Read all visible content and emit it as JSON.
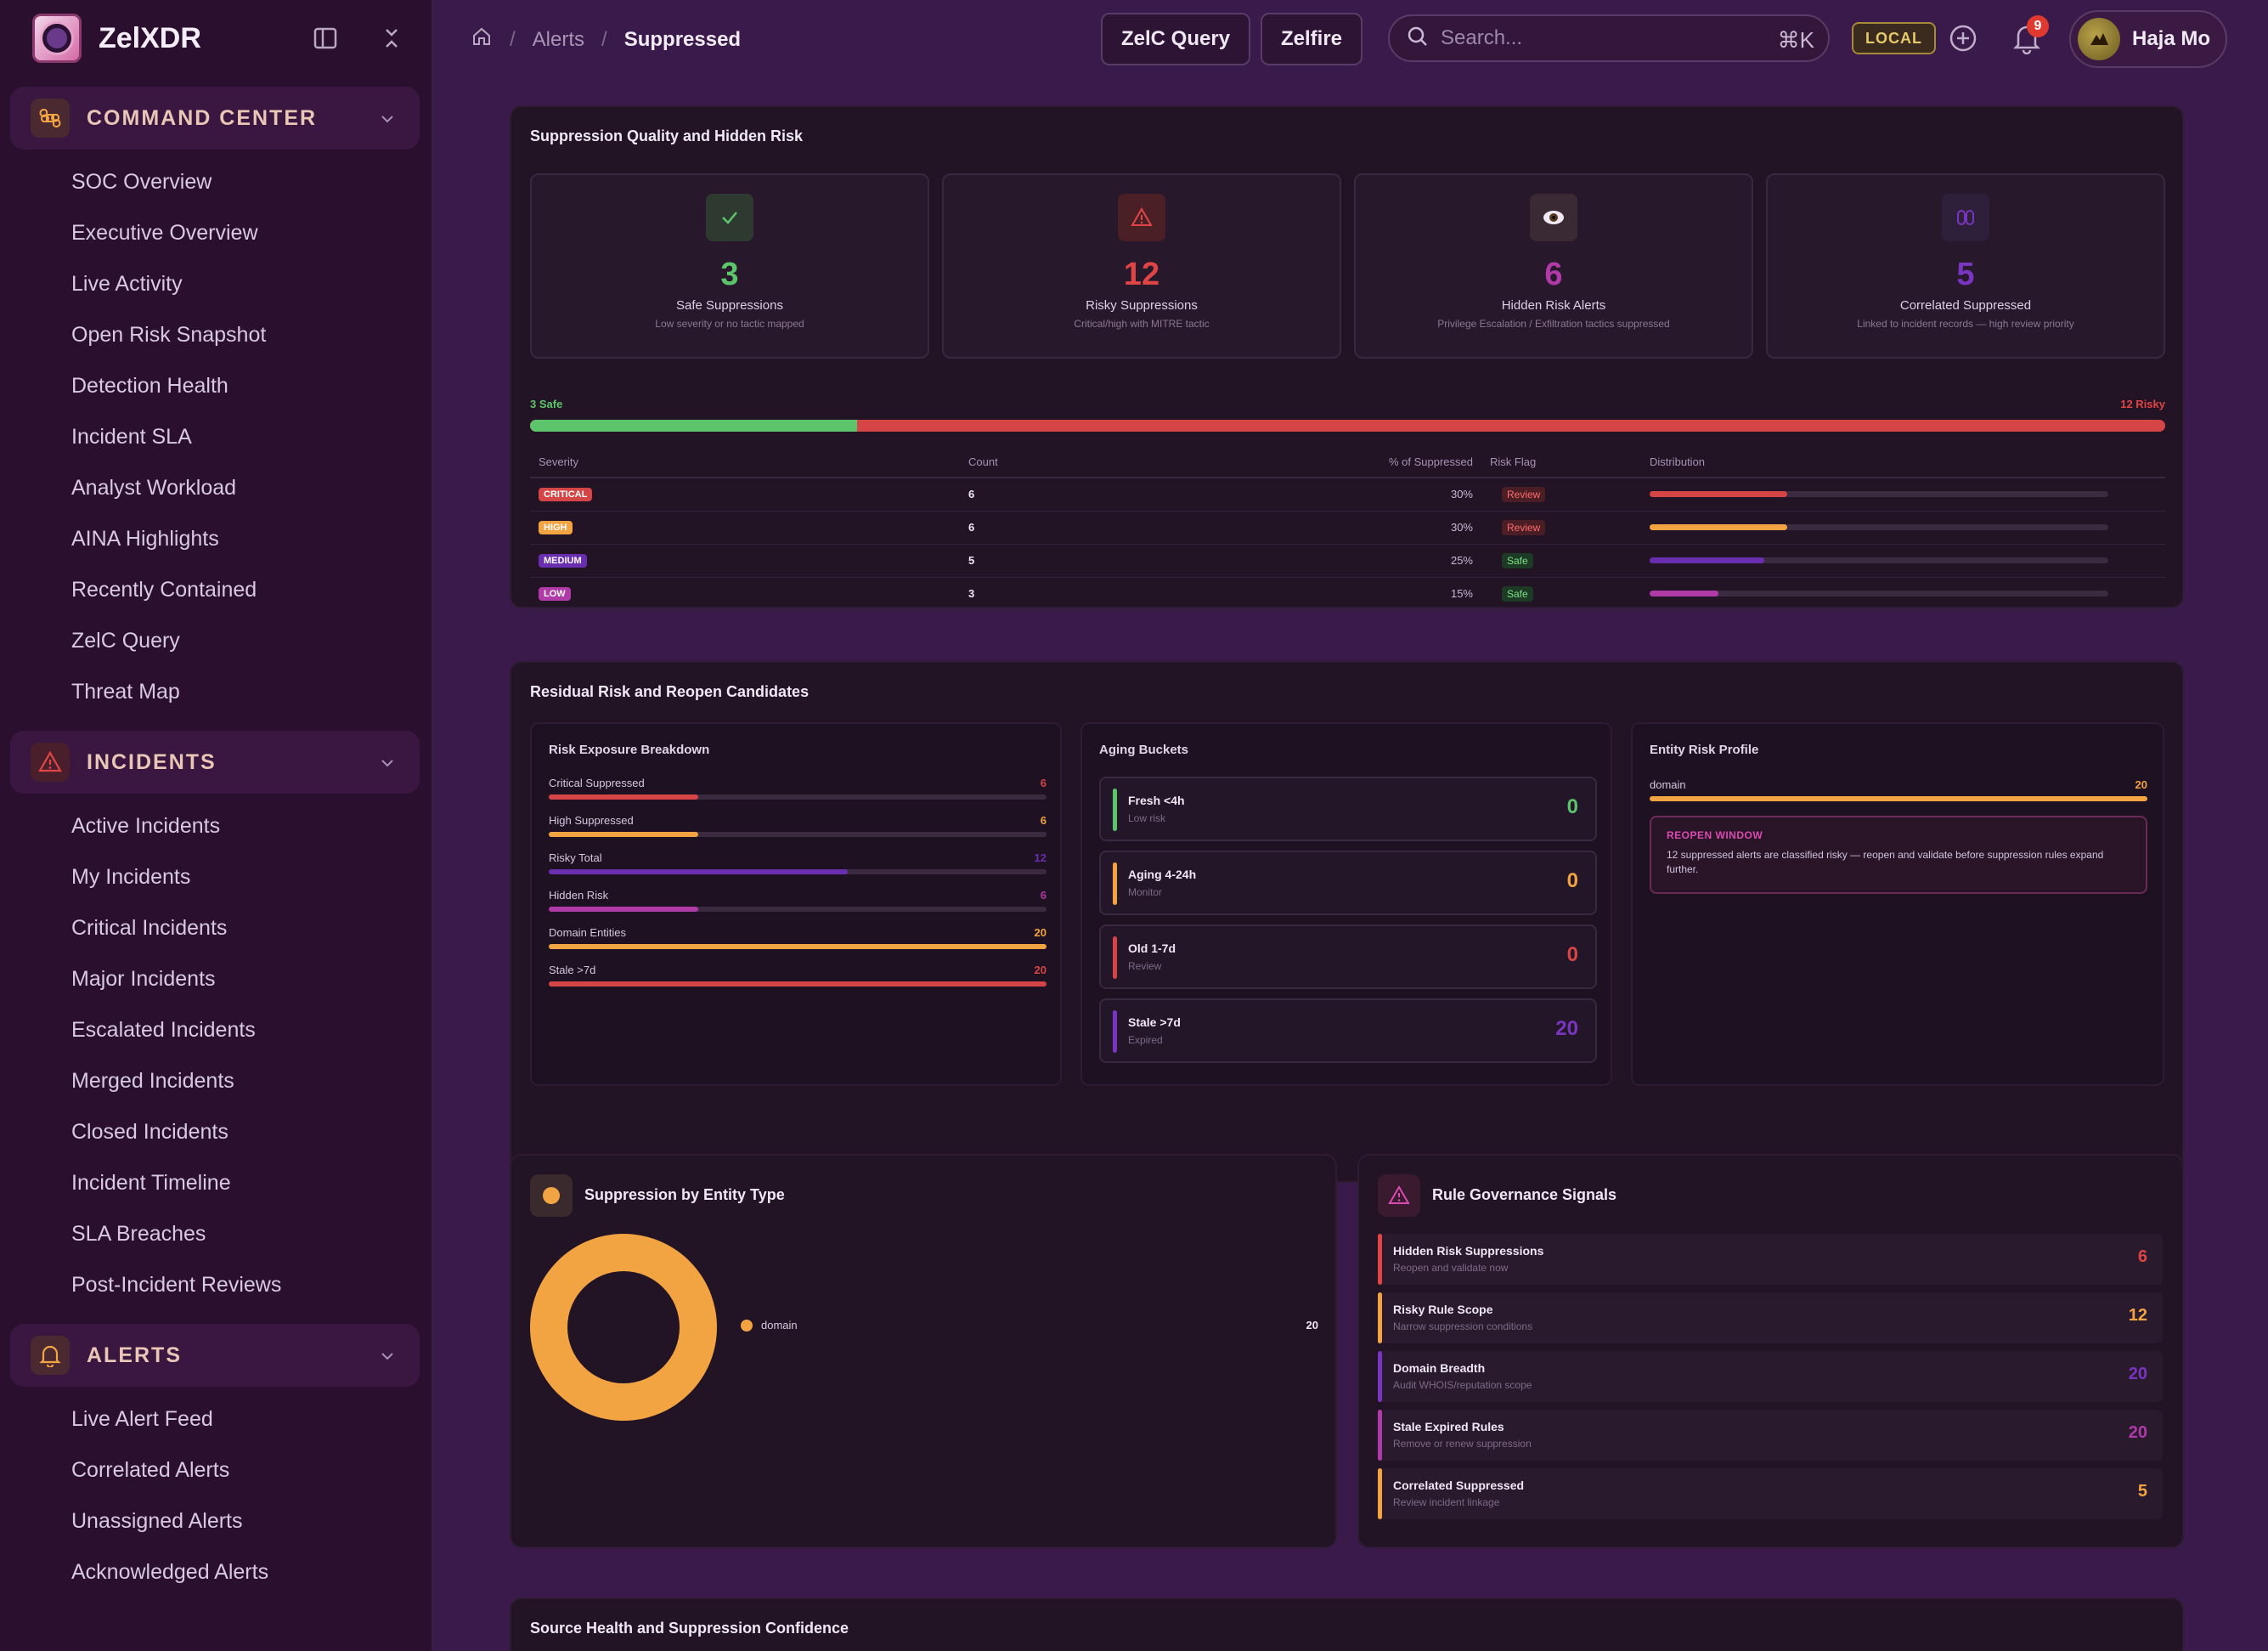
{
  "app": {
    "name": "ZelXDR"
  },
  "sidebar": {
    "sections": [
      {
        "title": "COMMAND CENTER",
        "icon": "command-icon",
        "color": "#f2a443",
        "items": [
          "SOC Overview",
          "Executive Overview",
          "Live Activity",
          "Open Risk Snapshot",
          "Detection Health",
          "Incident SLA",
          "Analyst Workload",
          "AINA Highlights",
          "Recently Contained",
          "ZelC Query",
          "Threat Map"
        ]
      },
      {
        "title": "INCIDENTS",
        "icon": "warning-icon",
        "color": "#e04545",
        "items": [
          "Active Incidents",
          "My Incidents",
          "Critical Incidents",
          "Major Incidents",
          "Escalated Incidents",
          "Merged Incidents",
          "Closed Incidents",
          "Incident Timeline",
          "SLA Breaches",
          "Post-Incident Reviews"
        ]
      },
      {
        "title": "ALERTS",
        "icon": "bell-icon",
        "color": "#f2a443",
        "items": [
          "Live Alert Feed",
          "Correlated Alerts",
          "Unassigned Alerts",
          "Acknowledged Alerts"
        ]
      }
    ]
  },
  "topbar": {
    "breadcrumb": [
      "Alerts",
      "Suppressed"
    ],
    "zelc_query_label": "ZelC Query",
    "zelfire_label": "Zelfire",
    "search_placeholder": "Search...",
    "search_shortcut": "⌘K",
    "env_badge": "LOCAL",
    "notification_count": "9",
    "user_name": "Haja Mo"
  },
  "quality": {
    "title": "Suppression Quality and Hidden Risk",
    "kpis": [
      {
        "value": "3",
        "label": "Safe Suppressions",
        "sub": "Low severity or no tactic mapped",
        "color": "#5cc46a",
        "icon": "check-icon"
      },
      {
        "value": "12",
        "label": "Risky Suppressions",
        "sub": "Critical/high with MITRE tactic",
        "color": "#e04545",
        "icon": "warning-icon"
      },
      {
        "value": "6",
        "label": "Hidden Risk Alerts",
        "sub": "Privilege Escalation / Exfiltration tactics suppressed",
        "color": "#b03aa8",
        "icon": "eye-icon"
      },
      {
        "value": "5",
        "label": "Correlated Suppressed",
        "sub": "Linked to incident records — high review priority",
        "color": "#7a35c0",
        "icon": "link-icon"
      }
    ],
    "safe_label": "3 Safe",
    "risky_label": "12 Risky",
    "safe_fraction": 0.2,
    "table": {
      "headers": [
        "Severity",
        "Count",
        "% of Suppressed",
        "Risk Flag",
        "Distribution"
      ],
      "rows": [
        {
          "severity": "CRITICAL",
          "count": "6",
          "pct": "30%",
          "flag": "Review",
          "fraction": 0.3,
          "color": "#d64545"
        },
        {
          "severity": "HIGH",
          "count": "6",
          "pct": "30%",
          "flag": "Review",
          "fraction": 0.3,
          "color": "#f2a443"
        },
        {
          "severity": "MEDIUM",
          "count": "5",
          "pct": "25%",
          "flag": "Safe",
          "fraction": 0.25,
          "color": "#6a2fb0"
        },
        {
          "severity": "LOW",
          "count": "3",
          "pct": "15%",
          "flag": "Safe",
          "fraction": 0.15,
          "color": "#b03aa8"
        }
      ]
    }
  },
  "residual": {
    "title": "Residual Risk and Reopen Candidates",
    "exposure": {
      "title": "Risk Exposure Breakdown",
      "rows": [
        {
          "label": "Critical Suppressed",
          "value": "6",
          "fraction": 0.3,
          "color": "#d64545"
        },
        {
          "label": "High Suppressed",
          "value": "6",
          "fraction": 0.3,
          "color": "#f2a443"
        },
        {
          "label": "Risky Total",
          "value": "12",
          "fraction": 0.6,
          "color": "#6a2fb0"
        },
        {
          "label": "Hidden Risk",
          "value": "6",
          "fraction": 0.3,
          "color": "#b03aa8"
        },
        {
          "label": "Domain Entities",
          "value": "20",
          "fraction": 1.0,
          "color": "#f2a443"
        },
        {
          "label": "Stale >7d",
          "value": "20",
          "fraction": 1.0,
          "color": "#d64545"
        }
      ]
    },
    "aging": {
      "title": "Aging Buckets",
      "buckets": [
        {
          "name": "Fresh <4h",
          "sub": "Low risk",
          "value": "0",
          "color": "#5cc46a"
        },
        {
          "name": "Aging 4-24h",
          "sub": "Monitor",
          "value": "0",
          "color": "#f2a443"
        },
        {
          "name": "Old 1-7d",
          "sub": "Review",
          "value": "0",
          "color": "#d64545"
        },
        {
          "name": "Stale >7d",
          "sub": "Expired",
          "value": "20",
          "color": "#7a35c0"
        }
      ]
    },
    "entity": {
      "title": "Entity Risk Profile",
      "label": "domain",
      "value": "20",
      "fraction": 1.0,
      "reopen_title": "REOPEN WINDOW",
      "reopen_text": "12 suppressed alerts are classified risky — reopen and validate before suppression rules expand further."
    }
  },
  "entity_type": {
    "title": "Suppression by Entity Type",
    "legend": [
      {
        "label": "domain",
        "value": "20",
        "color": "#f2a443"
      }
    ]
  },
  "governance": {
    "title": "Rule Governance Signals",
    "rows": [
      {
        "name": "Hidden Risk Suppressions",
        "sub": "Reopen and validate now",
        "value": "6",
        "color": "#e04545"
      },
      {
        "name": "Risky Rule Scope",
        "sub": "Narrow suppression conditions",
        "value": "12",
        "color": "#f2a443"
      },
      {
        "name": "Domain Breadth",
        "sub": "Audit WHOIS/reputation scope",
        "value": "20",
        "color": "#7a35c0"
      },
      {
        "name": "Stale Expired Rules",
        "sub": "Remove or renew suppression",
        "value": "20",
        "color": "#b03aa8"
      },
      {
        "name": "Correlated Suppressed",
        "sub": "Review incident linkage",
        "value": "5",
        "color": "#f2a443"
      }
    ]
  },
  "source_health": {
    "title": "Source Health and Suppression Confidence"
  }
}
